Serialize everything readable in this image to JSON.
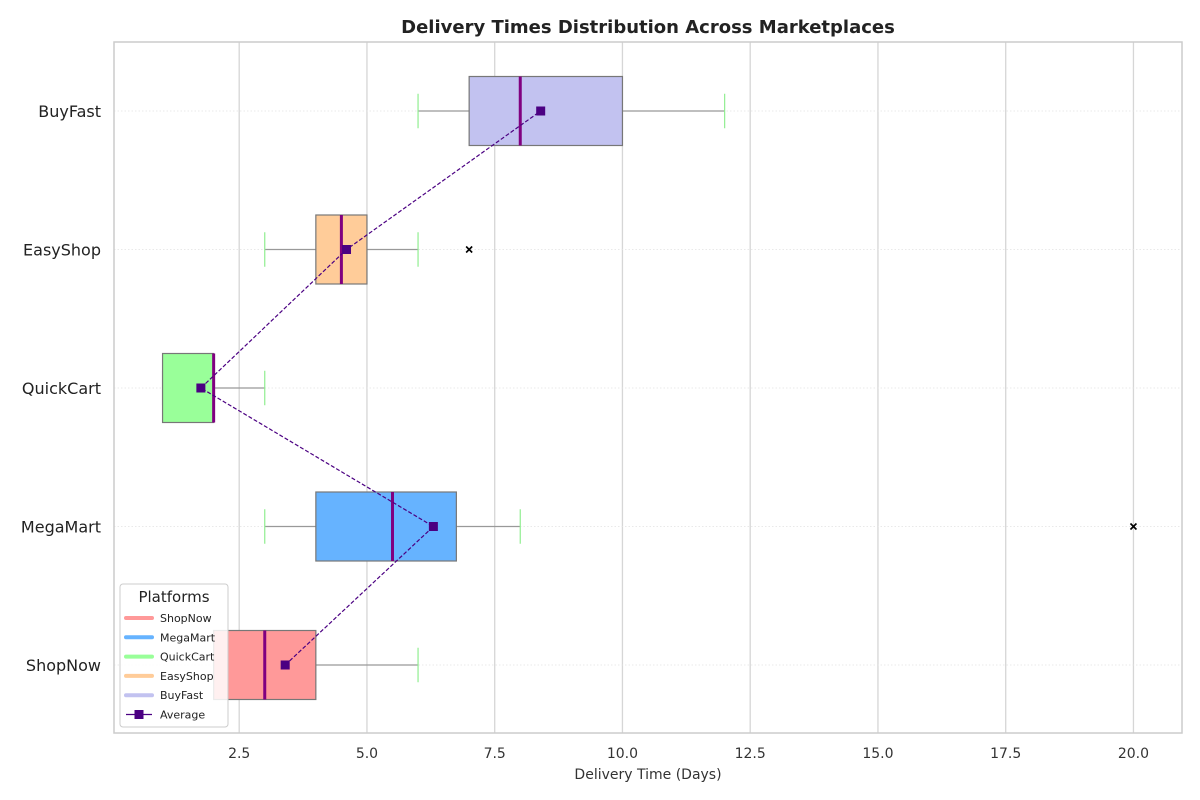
{
  "chart_data": {
    "type": "box",
    "orientation": "horizontal",
    "title": "Delivery Times Distribution Across Marketplaces",
    "xlabel": "Delivery Time (Days)",
    "ylabel": "",
    "xlim": [
      0.05,
      20.95
    ],
    "xticks": [
      2.5,
      5.0,
      7.5,
      10.0,
      12.5,
      15.0,
      17.5,
      20.0
    ],
    "xtick_labels": [
      "2.5",
      "5.0",
      "7.5",
      "10.0",
      "12.5",
      "15.0",
      "17.5",
      "20.0"
    ],
    "grid": true,
    "categories": [
      "ShopNow",
      "MegaMart",
      "QuickCart",
      "EasyShop",
      "BuyFast"
    ],
    "series": [
      {
        "name": "ShopNow",
        "color": "#ff9999",
        "whisker_low": 2,
        "q1": 2,
        "median": 3,
        "q3": 4,
        "whisker_high": 6,
        "mean": 3.4,
        "outliers": []
      },
      {
        "name": "MegaMart",
        "color": "#66b3ff",
        "whisker_low": 3,
        "q1": 4,
        "median": 5.5,
        "q3": 6.75,
        "whisker_high": 8,
        "mean": 6.3,
        "outliers": [
          20
        ]
      },
      {
        "name": "QuickCart",
        "color": "#99ff99",
        "whisker_low": 1,
        "q1": 1,
        "median": 2,
        "q3": 2,
        "whisker_high": 3,
        "mean": 1.75,
        "outliers": []
      },
      {
        "name": "EasyShop",
        "color": "#ffcc99",
        "whisker_low": 3,
        "q1": 4,
        "median": 4.5,
        "q3": 5,
        "whisker_high": 6,
        "mean": 4.6,
        "outliers": [
          7
        ]
      },
      {
        "name": "BuyFast",
        "color": "#c2c2f0",
        "whisker_low": 6,
        "q1": 7,
        "median": 8,
        "q3": 10,
        "whisker_high": 12,
        "mean": 8.4,
        "outliers": []
      }
    ],
    "median_color": "#800080",
    "whisker_color": "#999999",
    "cap_color": "#90ee90",
    "mean_line": {
      "name": "Average",
      "color": "#4b0082",
      "marker": "square",
      "style": "dashed"
    },
    "legend": {
      "title": "Platforms",
      "placement": "lower-left",
      "entries": [
        "ShopNow",
        "MegaMart",
        "QuickCart",
        "EasyShop",
        "BuyFast",
        "Average"
      ]
    }
  }
}
